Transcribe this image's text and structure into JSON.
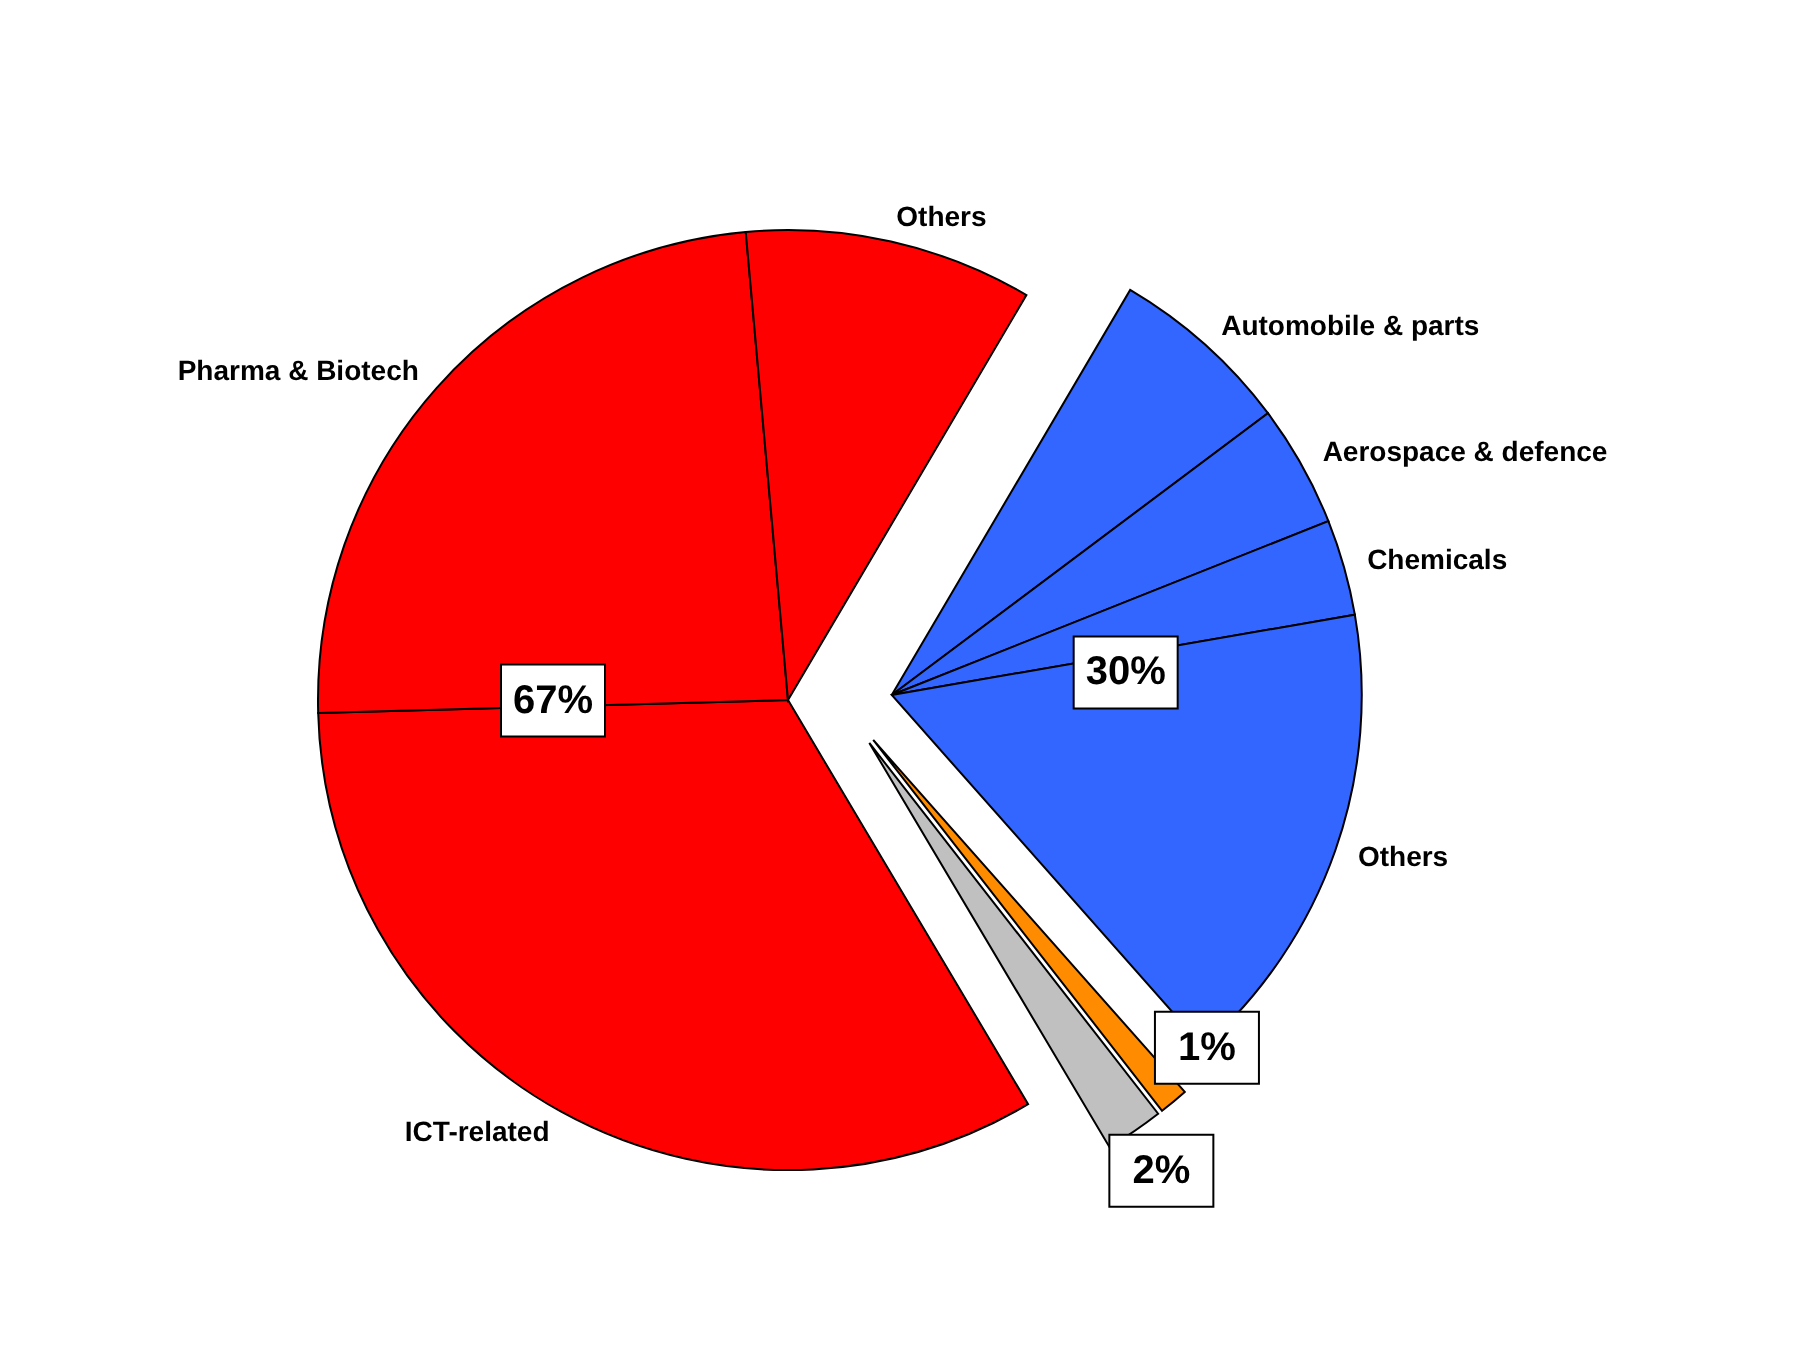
{
  "chart_data": {
    "type": "pie",
    "categories": [
      "Automobile & parts",
      "Aerospace & defence",
      "Chemicals",
      "Others",
      null,
      null,
      "ICT-related",
      "Pharma & Biotech",
      "Others"
    ],
    "values": [
      6.3,
      4.2,
      3.3,
      16.2,
      1,
      2,
      33.1,
      24.0,
      9.9
    ],
    "colors": [
      "#3366ff",
      "#3366ff",
      "#3366ff",
      "#3366ff",
      "#ff8c00",
      "#c0c0c0",
      "#ff0000",
      "#ff0000",
      "#ff0000"
    ],
    "annotations": [
      "30%",
      "1%",
      "2%",
      "67%"
    ]
  }
}
